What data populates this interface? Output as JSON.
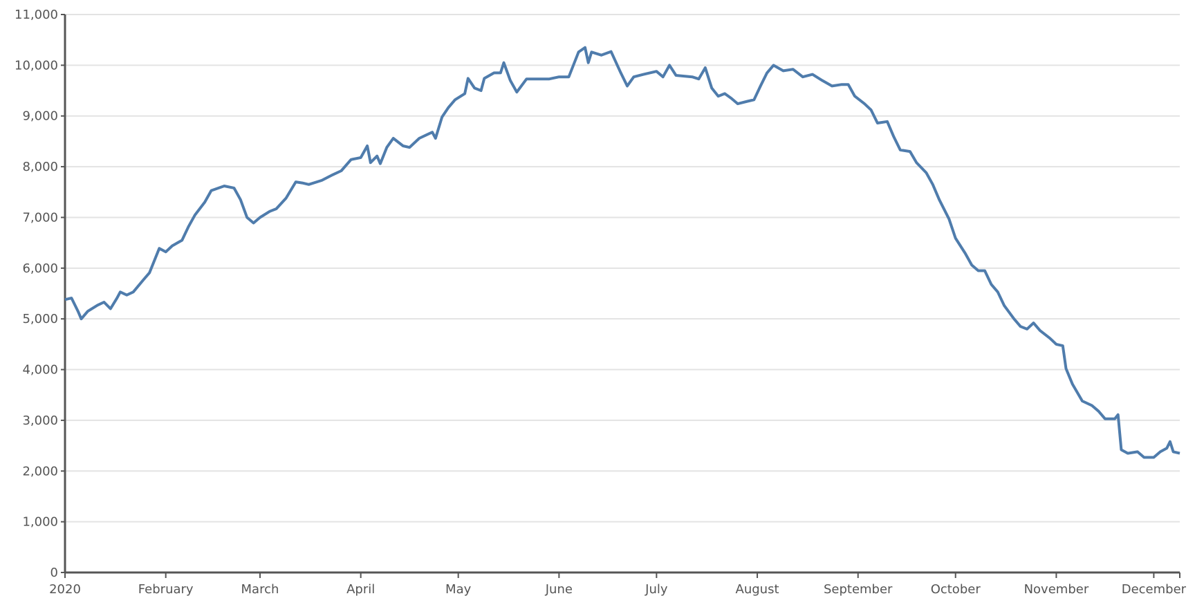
{
  "chart_data": {
    "type": "line",
    "x": [
      "2020-01-01",
      "2020-01-03",
      "2020-01-05",
      "2020-01-06",
      "2020-01-08",
      "2020-01-11",
      "2020-01-13",
      "2020-01-15",
      "2020-01-17",
      "2020-01-18",
      "2020-01-20",
      "2020-01-22",
      "2020-01-25",
      "2020-01-27",
      "2020-01-30",
      "2020-02-01",
      "2020-02-03",
      "2020-02-06",
      "2020-02-08",
      "2020-02-10",
      "2020-02-13",
      "2020-02-15",
      "2020-02-19",
      "2020-02-22",
      "2020-02-24",
      "2020-02-26",
      "2020-02-28",
      "2020-03-01",
      "2020-03-04",
      "2020-03-06",
      "2020-03-09",
      "2020-03-12",
      "2020-03-14",
      "2020-03-16",
      "2020-03-20",
      "2020-03-23",
      "2020-03-26",
      "2020-03-29",
      "2020-04-01",
      "2020-04-03",
      "2020-04-04",
      "2020-04-06",
      "2020-04-07",
      "2020-04-09",
      "2020-04-11",
      "2020-04-14",
      "2020-04-16",
      "2020-04-19",
      "2020-04-21",
      "2020-04-23",
      "2020-04-24",
      "2020-04-26",
      "2020-04-28",
      "2020-04-30",
      "2020-05-03",
      "2020-05-04",
      "2020-05-06",
      "2020-05-08",
      "2020-05-09",
      "2020-05-12",
      "2020-05-14",
      "2020-05-15",
      "2020-05-17",
      "2020-05-19",
      "2020-05-22",
      "2020-05-25",
      "2020-05-29",
      "2020-06-01",
      "2020-06-04",
      "2020-06-07",
      "2020-06-09",
      "2020-06-10",
      "2020-06-11",
      "2020-06-14",
      "2020-06-17",
      "2020-06-20",
      "2020-06-22",
      "2020-06-24",
      "2020-06-27",
      "2020-07-01",
      "2020-07-03",
      "2020-07-05",
      "2020-07-07",
      "2020-07-12",
      "2020-07-14",
      "2020-07-16",
      "2020-07-18",
      "2020-07-20",
      "2020-07-22",
      "2020-07-24",
      "2020-07-26",
      "2020-07-29",
      "2020-07-31",
      "2020-08-02",
      "2020-08-04",
      "2020-08-06",
      "2020-08-09",
      "2020-08-12",
      "2020-08-15",
      "2020-08-18",
      "2020-08-21",
      "2020-08-24",
      "2020-08-27",
      "2020-08-29",
      "2020-08-31",
      "2020-09-03",
      "2020-09-05",
      "2020-09-07",
      "2020-09-10",
      "2020-09-12",
      "2020-09-14",
      "2020-09-17",
      "2020-09-19",
      "2020-09-22",
      "2020-09-24",
      "2020-09-26",
      "2020-09-29",
      "2020-10-01",
      "2020-10-04",
      "2020-10-06",
      "2020-10-08",
      "2020-10-10",
      "2020-10-12",
      "2020-10-14",
      "2020-10-16",
      "2020-10-19",
      "2020-10-21",
      "2020-10-23",
      "2020-10-25",
      "2020-10-27",
      "2020-10-30",
      "2020-11-01",
      "2020-11-03",
      "2020-11-04",
      "2020-11-06",
      "2020-11-09",
      "2020-11-12",
      "2020-11-14",
      "2020-11-16",
      "2020-11-19",
      "2020-11-20",
      "2020-11-21",
      "2020-11-23",
      "2020-11-26",
      "2020-11-28",
      "2020-12-01",
      "2020-12-03",
      "2020-12-05",
      "2020-12-06",
      "2020-12-07",
      "2020-12-09"
    ],
    "series": [
      {
        "color": "#4f7cac",
        "values": [
          5380,
          5410,
          5150,
          5000,
          5150,
          5270,
          5330,
          5200,
          5410,
          5530,
          5470,
          5530,
          5760,
          5910,
          6390,
          6320,
          6440,
          6550,
          6820,
          7050,
          7300,
          7530,
          7620,
          7580,
          7350,
          7000,
          6890,
          7000,
          7120,
          7170,
          7380,
          7700,
          7680,
          7650,
          7730,
          7830,
          7920,
          8140,
          8180,
          8410,
          8080,
          8210,
          8060,
          8380,
          8560,
          8410,
          8380,
          8560,
          8620,
          8680,
          8560,
          8980,
          9170,
          9320,
          9440,
          9740,
          9550,
          9500,
          9740,
          9850,
          9850,
          10050,
          9700,
          9470,
          9730,
          9730,
          9730,
          9770,
          9770,
          10260,
          10350,
          10050,
          10260,
          10200,
          10270,
          9850,
          9590,
          9770,
          9820,
          9880,
          9770,
          10000,
          9800,
          9770,
          9730,
          9950,
          9550,
          9390,
          9440,
          9350,
          9240,
          9290,
          9320,
          9590,
          9850,
          10000,
          9890,
          9920,
          9770,
          9820,
          9700,
          9590,
          9620,
          9620,
          9390,
          9240,
          9120,
          8860,
          8890,
          8590,
          8330,
          8300,
          8080,
          7880,
          7650,
          7350,
          6970,
          6590,
          6290,
          6060,
          5950,
          5950,
          5680,
          5530,
          5260,
          5000,
          4850,
          4800,
          4920,
          4770,
          4620,
          4500,
          4470,
          4020,
          3710,
          3380,
          3290,
          3180,
          3030,
          3030,
          3110,
          2420,
          2350,
          2380,
          2270,
          2270,
          2380,
          2450,
          2580,
          2380,
          2350
        ]
      }
    ],
    "xlim": [
      "2020-01-01",
      "2020-12-09"
    ],
    "xticks": [
      {
        "value": "2020-01-01",
        "label": "2020"
      },
      {
        "value": "2020-02-01",
        "label": "February"
      },
      {
        "value": "2020-03-01",
        "label": "March"
      },
      {
        "value": "2020-04-01",
        "label": "April"
      },
      {
        "value": "2020-05-01",
        "label": "May"
      },
      {
        "value": "2020-06-01",
        "label": "June"
      },
      {
        "value": "2020-07-01",
        "label": "July"
      },
      {
        "value": "2020-08-01",
        "label": "August"
      },
      {
        "value": "2020-09-01",
        "label": "September"
      },
      {
        "value": "2020-10-01",
        "label": "October"
      },
      {
        "value": "2020-11-01",
        "label": "November"
      },
      {
        "value": "2020-12-01",
        "label": "December"
      }
    ],
    "ylim": [
      0,
      11000
    ],
    "yticks": [
      0,
      {
        "value": 1000,
        "label": "1,000"
      },
      {
        "value": 2000,
        "label": "2,000"
      },
      {
        "value": 3000,
        "label": "3,000"
      },
      {
        "value": 4000,
        "label": "4,000"
      },
      {
        "value": 5000,
        "label": "5,000"
      },
      {
        "value": 6000,
        "label": "6,000"
      },
      {
        "value": 7000,
        "label": "7,000"
      },
      {
        "value": 8000,
        "label": "8,000"
      },
      {
        "value": 9000,
        "label": "9,000"
      },
      {
        "value": 10000,
        "label": "10,000"
      },
      {
        "value": 11000,
        "label": "11,000"
      }
    ],
    "grid": true
  }
}
